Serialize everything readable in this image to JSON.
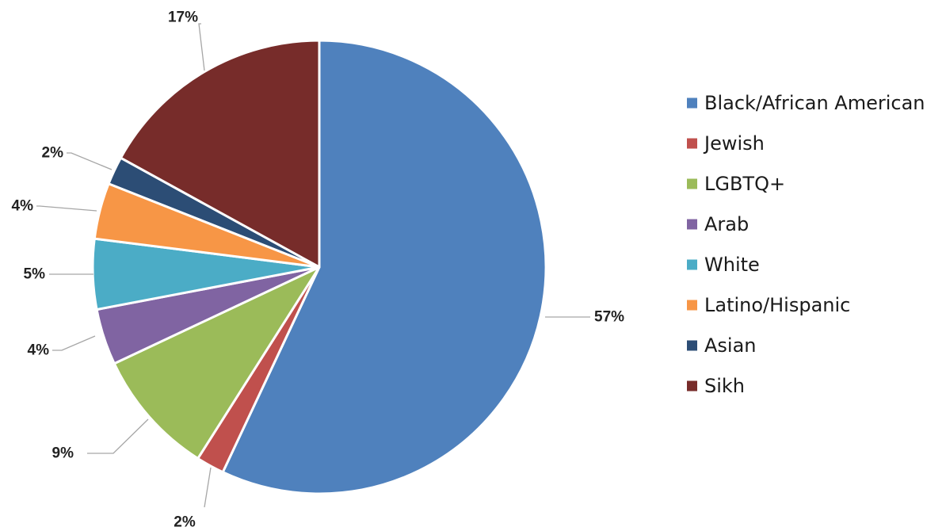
{
  "chart_data": {
    "type": "pie",
    "title": "",
    "series": [
      {
        "values": [
          57,
          2,
          9,
          4,
          5,
          4,
          2,
          17
        ]
      }
    ],
    "categories": [
      "Black/African American",
      "Jewish",
      "LGBTQ+",
      "Arab",
      "White",
      "Latino/Hispanic",
      "Asian",
      "Sikh"
    ],
    "data_labels": [
      "57%",
      "2%",
      "9%",
      "4%",
      "5%",
      "4%",
      "2%",
      "17%"
    ],
    "colors": [
      "#4f81bd",
      "#c0504d",
      "#9bbb59",
      "#8064a2",
      "#4bacc6",
      "#f79646",
      "#2c4d75",
      "#772c2a"
    ],
    "legend_position": "right",
    "start_angle": "12 o'clock, clockwise"
  }
}
